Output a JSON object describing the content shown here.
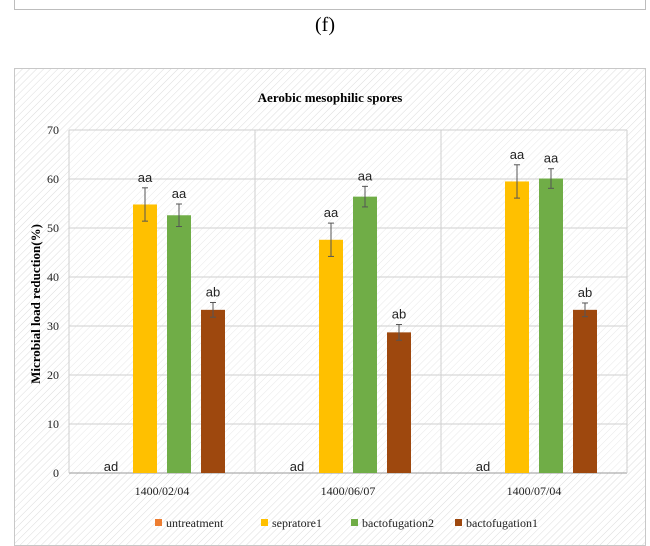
{
  "panel_label": "(f)",
  "chart_data": {
    "type": "bar",
    "title": "Aerobic mesophilic spores",
    "ylabel": "Microbial load reduction(%)",
    "xlabel": "",
    "ylim": [
      0,
      70
    ],
    "yticks": [
      0,
      10,
      20,
      30,
      40,
      50,
      60,
      70
    ],
    "grid": true,
    "legend_position": "bottom",
    "categories": [
      "1400/02/04",
      "1400/06/07",
      "1400/07/04"
    ],
    "series": [
      {
        "name": "untreatment",
        "color": "#ED7D31",
        "values": [
          0,
          0,
          0
        ],
        "errors": [
          0,
          0,
          0
        ],
        "labels": [
          "ad",
          "ad",
          "ad"
        ]
      },
      {
        "name": "sepratore1",
        "color": "#FFC000",
        "values": [
          54.8,
          47.6,
          59.5
        ],
        "errors": [
          3.4,
          3.4,
          3.4
        ],
        "labels": [
          "aa",
          "aa",
          "aa"
        ]
      },
      {
        "name": "bactofugation2",
        "color": "#70AD47",
        "values": [
          52.6,
          56.4,
          60.1
        ],
        "errors": [
          2.3,
          2.1,
          2.0
        ],
        "labels": [
          "aa",
          "aa",
          "aa"
        ]
      },
      {
        "name": "bactofugation1",
        "color": "#9E480E",
        "values": [
          33.3,
          28.7,
          33.3
        ],
        "errors": [
          1.5,
          1.6,
          1.4
        ],
        "labels": [
          "ab",
          "ab",
          "ab"
        ]
      }
    ]
  }
}
